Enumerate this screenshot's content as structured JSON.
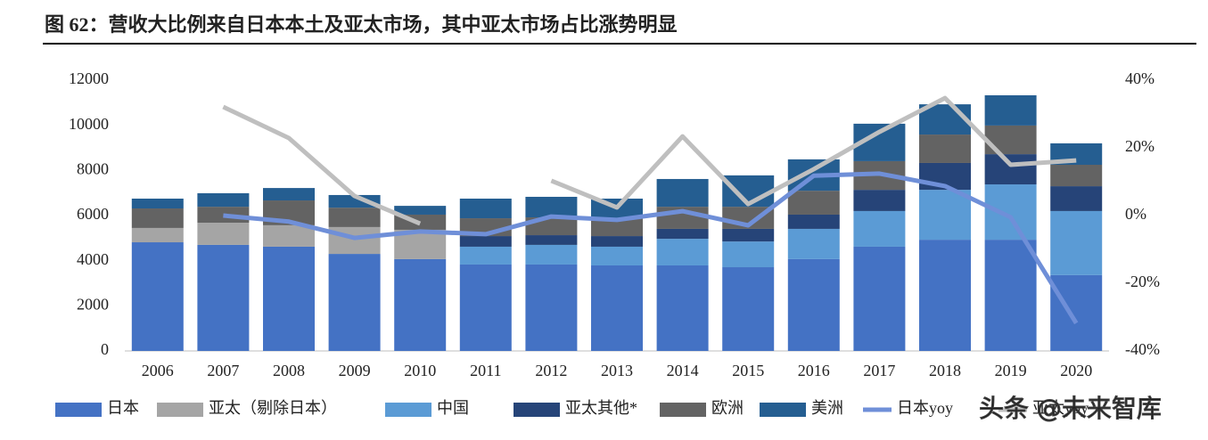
{
  "chart_data": {
    "type": "bar",
    "title": "图 62：营收大比例来自日本本土及亚太市场，其中亚太市场占比涨势明显",
    "watermark": "头条 @未来智库",
    "categories": [
      "2006",
      "2007",
      "2008",
      "2009",
      "2010",
      "2011",
      "2012",
      "2013",
      "2014",
      "2015",
      "2016",
      "2017",
      "2018",
      "2019",
      "2020"
    ],
    "stacked": true,
    "series": [
      {
        "name": "日本",
        "color": "#4472c4",
        "values": [
          4815,
          4700,
          4620,
          4300,
          4070,
          3830,
          3830,
          3790,
          3790,
          3710,
          4070,
          4620,
          4930,
          4930,
          3360
        ]
      },
      {
        "name": "亚太（剔除日本）",
        "color": "#a5a5a5",
        "values": [
          635,
          980,
          950,
          1190,
          1300,
          null,
          null,
          null,
          null,
          null,
          null,
          null,
          null,
          null,
          null
        ]
      },
      {
        "name": "中国",
        "color": "#5b9bd5",
        "values": [
          null,
          null,
          null,
          null,
          null,
          790,
          870,
          830,
          1180,
          1140,
          1340,
          1580,
          2210,
          2450,
          2840
        ]
      },
      {
        "name": "亚太其他*",
        "color": "#264478",
        "values": [
          null,
          null,
          null,
          null,
          null,
          470,
          430,
          470,
          440,
          560,
          630,
          940,
          1190,
          1340,
          1100
        ]
      },
      {
        "name": "欧洲",
        "color": "#636363",
        "values": [
          865,
          710,
          1100,
          860,
          670,
          790,
          790,
          790,
          980,
          980,
          1060,
          1270,
          1260,
          1270,
          950
        ]
      },
      {
        "name": "美洲",
        "color": "#255e91",
        "values": [
          435,
          600,
          550,
          560,
          390,
          870,
          910,
          870,
          1230,
          1390,
          1390,
          1660,
          1340,
          1340,
          950
        ]
      },
      {
        "name": "日本yoy",
        "color": "#6f8fd8",
        "type": "line",
        "axis": "y2",
        "values": [
          null,
          0,
          -1.8,
          -6.6,
          -4.7,
          -5.5,
          -0.3,
          -1.3,
          1.3,
          -2.9,
          11.8,
          12.4,
          8.7,
          -0.5,
          -31.8
        ]
      },
      {
        "name": "亚太yoy",
        "color": "#bfbfbf",
        "type": "line",
        "axis": "y2",
        "values": [
          null,
          32.1,
          22.9,
          5.8,
          -2.4,
          null,
          10.3,
          2.4,
          23.4,
          3.4,
          13.7,
          24.7,
          34.7,
          15,
          16.3
        ]
      }
    ],
    "ylim": [
      0,
      12000
    ],
    "yticks": [
      0,
      2000,
      4000,
      6000,
      8000,
      10000,
      12000
    ],
    "y2lim": [
      -40,
      40
    ],
    "y2ticks": [
      {
        "value": -40,
        "label": "-40%"
      },
      {
        "value": -20,
        "label": "-20%"
      },
      {
        "value": 0,
        "label": "0%"
      },
      {
        "value": 20,
        "label": "20%"
      },
      {
        "value": 40,
        "label": "40%"
      }
    ],
    "grid": false,
    "legend": "bottom"
  }
}
